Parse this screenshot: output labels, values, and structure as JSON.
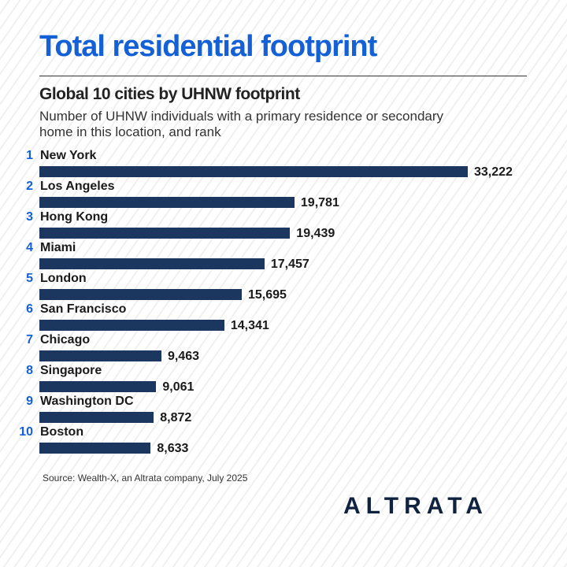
{
  "chart_data": {
    "type": "bar",
    "orientation": "horizontal",
    "title": "Total residential footprint",
    "subtitle": "Global 10 cities by UHNW footprint",
    "description": "Number of UHNW individuals with a primary residence or secondary home in this location, and rank",
    "ranks": [
      "1",
      "2",
      "3",
      "4",
      "5",
      "6",
      "7",
      "8",
      "9",
      "10"
    ],
    "categories": [
      "New York",
      "Los Angeles",
      "Hong Kong",
      "Miami",
      "London",
      "San Francisco",
      "Chicago",
      "Singapore",
      "Washington DC",
      "Boston"
    ],
    "values": [
      33222,
      19781,
      19439,
      17457,
      15695,
      14341,
      9463,
      9061,
      8872,
      8633
    ],
    "value_labels": [
      "33,222",
      "19,781",
      "19,439",
      "17,457",
      "15,695",
      "14,341",
      "9,463",
      "9,061",
      "8,872",
      "8,633"
    ],
    "xlim": [
      0,
      33222
    ],
    "bar_color": "#1b365f",
    "rank_color": "#1460d6"
  },
  "source": "Source: Wealth-X, an Altrata company, July 2025",
  "logo": "ALTRATA"
}
